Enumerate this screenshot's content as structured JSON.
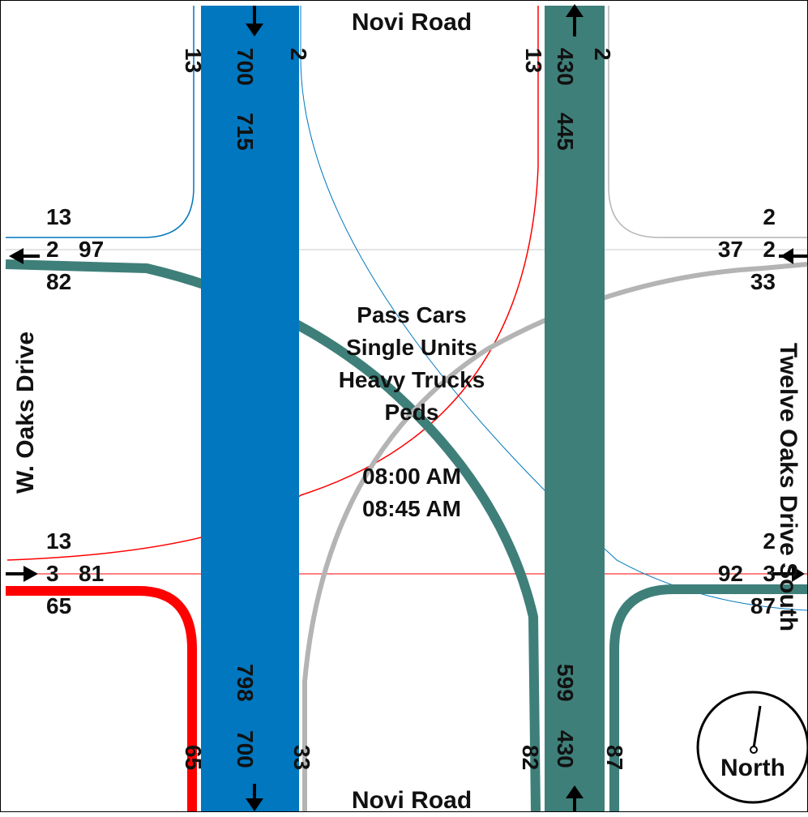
{
  "roads": {
    "north": "Novi Road",
    "south": "Novi Road",
    "west": "W. Oaks Drive",
    "east": "Twelve Oaks Drive South"
  },
  "center": {
    "line1": "Pass Cars",
    "line2": "Single Units",
    "line3": "Heavy Trucks",
    "line4": "Peds",
    "time_start": "08:00 AM",
    "time_end": "08:45 AM"
  },
  "north_leg": {
    "in": {
      "right": "13",
      "thru": "700",
      "left": "2",
      "total": "715"
    },
    "out": {
      "left": "13",
      "thru": "430",
      "right": "2",
      "total": "445"
    }
  },
  "south_leg": {
    "out": {
      "a": "65",
      "thru": "700",
      "b": "33",
      "total": "798"
    },
    "in": {
      "a": "82",
      "thru": "430",
      "b": "87",
      "total": "599"
    }
  },
  "west_leg": {
    "top": {
      "v1": "13",
      "v2": "2",
      "v3": "97",
      "v4": "82"
    },
    "bottom": {
      "v1": "13",
      "v2": "3",
      "v3": "81",
      "v4": "65"
    }
  },
  "east_leg": {
    "top": {
      "v1": "2",
      "v2": "37",
      "v3": "2",
      "v4": "33"
    },
    "bottom": {
      "v1": "2",
      "v2": "92",
      "v3": "3",
      "v4": "87"
    }
  },
  "compass": {
    "label": "North"
  },
  "colors": {
    "blue": "#0077BF",
    "teal": "#3F7F7A",
    "red": "#FF0000",
    "gray": "#B4B4B4",
    "thin_line": "#C8C8C8"
  }
}
